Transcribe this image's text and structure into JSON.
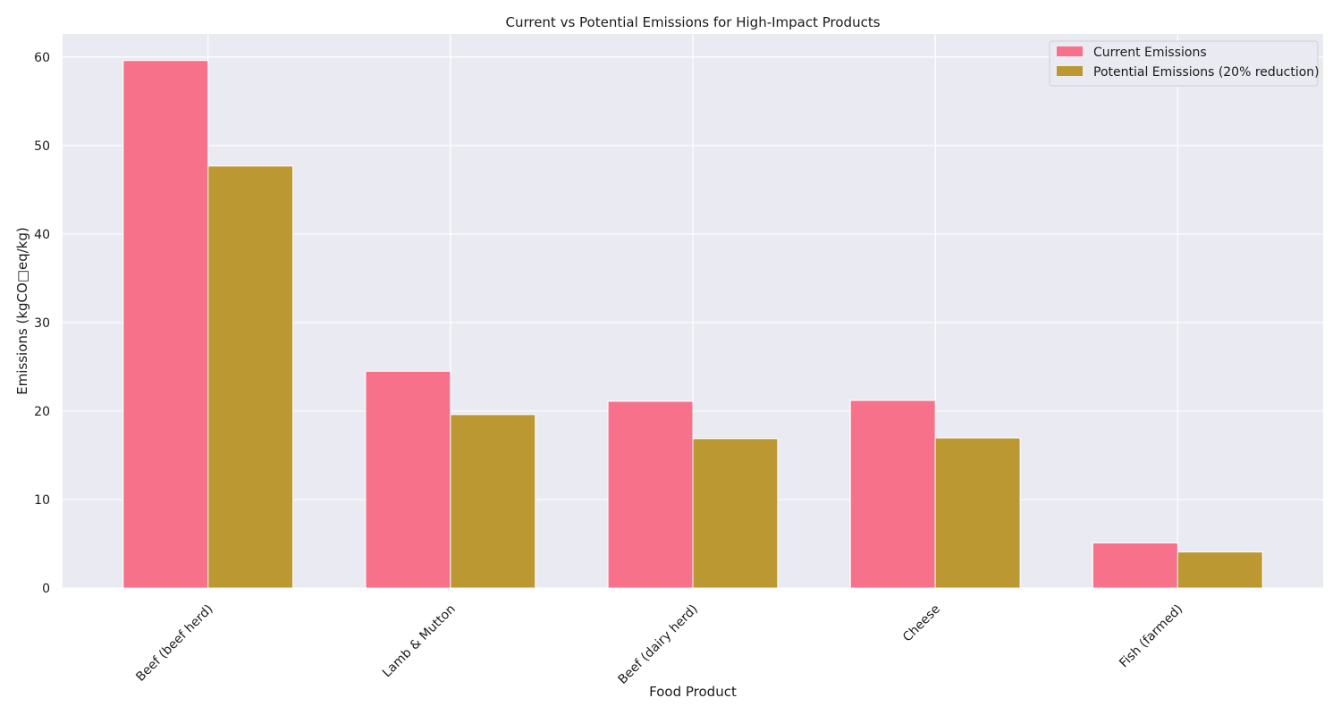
{
  "chart_data": {
    "type": "bar",
    "title": "Current vs Potential Emissions for High-Impact Products",
    "xlabel": "Food Product",
    "ylabel": "Emissions (kgCO□eq/kg)",
    "categories": [
      "Beef (beef herd)",
      "Lamb & Mutton",
      "Beef (dairy herd)",
      "Cheese",
      "Fish (farmed)"
    ],
    "series": [
      {
        "name": "Current Emissions",
        "color": "#f7718b",
        "values": [
          59.6,
          24.5,
          21.1,
          21.2,
          5.1
        ]
      },
      {
        "name": "Potential Emissions (20% reduction)",
        "color": "#bb9832",
        "values": [
          47.68,
          19.6,
          16.88,
          16.96,
          4.08
        ]
      }
    ],
    "ylim": [
      0,
      62.6
    ],
    "yticks": [
      0,
      10,
      20,
      30,
      40,
      50,
      60
    ],
    "grid": true,
    "legend": "top-right",
    "background": "#eaeaf2"
  }
}
